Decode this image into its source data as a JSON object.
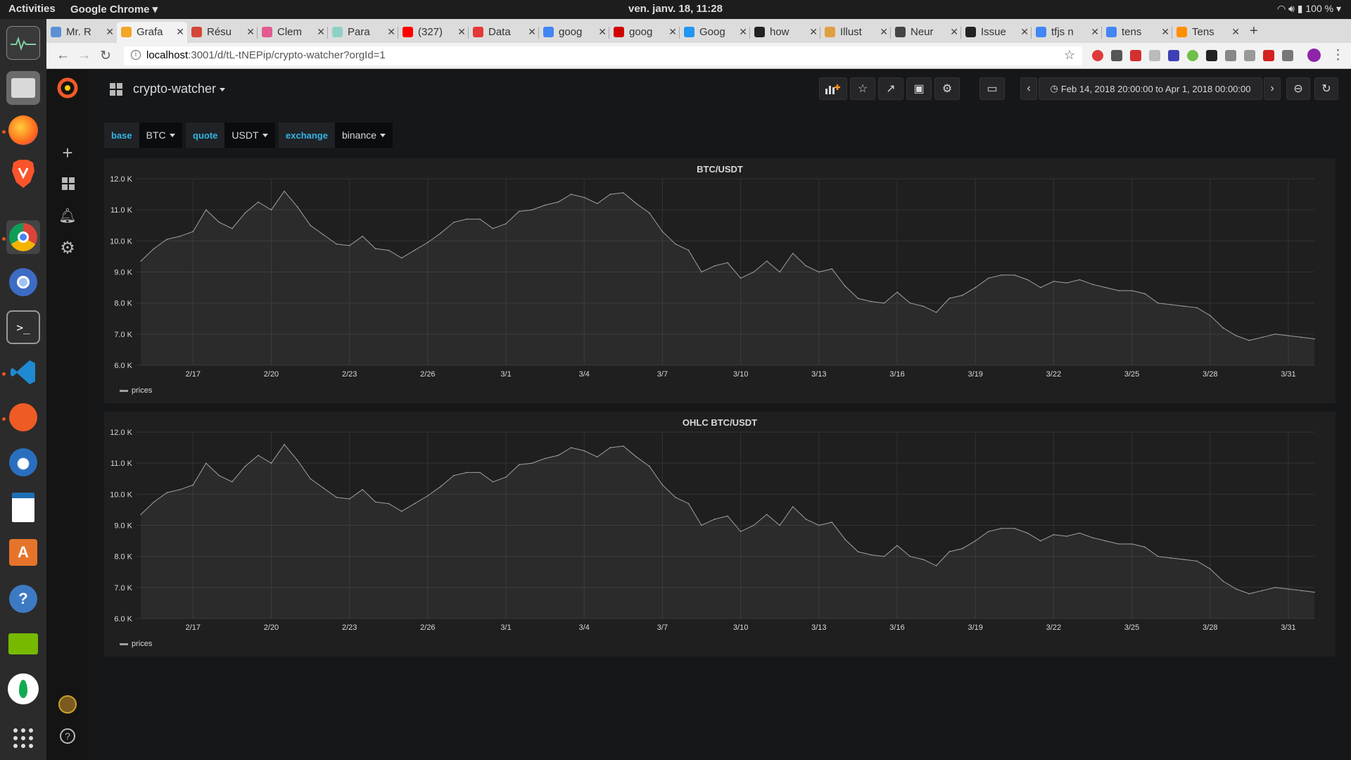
{
  "system_bar": {
    "activities": "Activities",
    "app_name": "Google Chrome ▾",
    "clock": "ven. janv. 18, 11:28",
    "tray": "100 % ▾"
  },
  "browser": {
    "tabs": [
      {
        "label": "Mr. R",
        "icon_color": "#5b8fd6"
      },
      {
        "label": "Grafa",
        "icon_color": "#f4a629",
        "active": true
      },
      {
        "label": "Résu",
        "icon_color": "#d44638"
      },
      {
        "label": "Clem",
        "icon_color": "#e35b8f"
      },
      {
        "label": "Para",
        "icon_color": "#8fd0c6"
      },
      {
        "label": "(327)",
        "icon_color": "#ff0000"
      },
      {
        "label": "Data",
        "icon_color": "#e53935"
      },
      {
        "label": "goog",
        "icon_color": "#4285f4"
      },
      {
        "label": "goog",
        "icon_color": "#d00000"
      },
      {
        "label": "Goog",
        "icon_color": "#2196f3"
      },
      {
        "label": "how",
        "icon_color": "#222222"
      },
      {
        "label": "Illust",
        "icon_color": "#e0a040"
      },
      {
        "label": "Neur",
        "icon_color": "#444444"
      },
      {
        "label": "Issue",
        "icon_color": "#222222"
      },
      {
        "label": "tfjs n",
        "icon_color": "#4285f4"
      },
      {
        "label": "tens",
        "icon_color": "#4285f4"
      },
      {
        "label": "Tens",
        "icon_color": "#ff8f00"
      }
    ],
    "url_host": "localhost",
    "url_path": ":3001/d/tL-tNEPip/crypto-watcher?orgId=1"
  },
  "dashboard": {
    "title": "crypto-watcher",
    "time_range": "Feb 14, 2018 20:00:00 to Apr 1, 2018 00:00:00",
    "variables": [
      {
        "label": "base",
        "value": "BTC"
      },
      {
        "label": "quote",
        "value": "USDT"
      },
      {
        "label": "exchange",
        "value": "binance"
      }
    ]
  },
  "panels": [
    {
      "title": "BTC/USDT",
      "legend": "prices"
    },
    {
      "title": "OHLC BTC/USDT",
      "legend": "prices"
    }
  ],
  "chart_data": [
    {
      "type": "line",
      "title": "BTC/USDT",
      "xlabel": "",
      "ylabel": "",
      "y_tick_labels": [
        "12.0 K",
        "11.0 K",
        "10.0 K",
        "9.0 K",
        "8.0 K",
        "7.0 K",
        "6.0 K"
      ],
      "x_tick_labels": [
        "2/17",
        "2/20",
        "2/23",
        "2/26",
        "3/1",
        "3/4",
        "3/7",
        "3/10",
        "3/13",
        "3/16",
        "3/19",
        "3/22",
        "3/25",
        "3/28",
        "3/31"
      ],
      "ylim": [
        6000,
        12000
      ],
      "xlim": [
        "2018-02-14 20:00",
        "2018-04-01 00:00"
      ],
      "grid": true,
      "series": [
        {
          "name": "prices",
          "color": "#a0a0a0",
          "x": [
            "2018-02-15 00:00",
            "2018-02-15 12:00",
            "2018-02-16 00:00",
            "2018-02-16 12:00",
            "2018-02-17 00:00",
            "2018-02-17 12:00",
            "2018-02-18 00:00",
            "2018-02-18 12:00",
            "2018-02-19 00:00",
            "2018-02-19 12:00",
            "2018-02-20 00:00",
            "2018-02-20 12:00",
            "2018-02-21 00:00",
            "2018-02-21 12:00",
            "2018-02-22 00:00",
            "2018-02-22 12:00",
            "2018-02-23 00:00",
            "2018-02-23 12:00",
            "2018-02-24 00:00",
            "2018-02-24 12:00",
            "2018-02-25 00:00",
            "2018-02-25 12:00",
            "2018-02-26 00:00",
            "2018-02-26 12:00",
            "2018-02-27 00:00",
            "2018-02-27 12:00",
            "2018-02-28 00:00",
            "2018-02-28 12:00",
            "2018-03-01 00:00",
            "2018-03-01 12:00",
            "2018-03-02 00:00",
            "2018-03-02 12:00",
            "2018-03-03 00:00",
            "2018-03-03 12:00",
            "2018-03-04 00:00",
            "2018-03-04 12:00",
            "2018-03-05 00:00",
            "2018-03-05 12:00",
            "2018-03-06 00:00",
            "2018-03-06 12:00",
            "2018-03-07 00:00",
            "2018-03-07 12:00",
            "2018-03-08 00:00",
            "2018-03-08 12:00",
            "2018-03-09 00:00",
            "2018-03-09 12:00",
            "2018-03-10 00:00",
            "2018-03-10 12:00",
            "2018-03-11 00:00",
            "2018-03-11 12:00",
            "2018-03-12 00:00",
            "2018-03-12 12:00",
            "2018-03-13 00:00",
            "2018-03-13 12:00",
            "2018-03-14 00:00",
            "2018-03-14 12:00",
            "2018-03-15 00:00",
            "2018-03-15 12:00",
            "2018-03-16 00:00",
            "2018-03-16 12:00",
            "2018-03-17 00:00",
            "2018-03-17 12:00",
            "2018-03-18 00:00",
            "2018-03-18 12:00",
            "2018-03-19 00:00",
            "2018-03-19 12:00",
            "2018-03-20 00:00",
            "2018-03-20 12:00",
            "2018-03-21 00:00",
            "2018-03-21 12:00",
            "2018-03-22 00:00",
            "2018-03-22 12:00",
            "2018-03-23 00:00",
            "2018-03-23 12:00",
            "2018-03-24 00:00",
            "2018-03-24 12:00",
            "2018-03-25 00:00",
            "2018-03-25 12:00",
            "2018-03-26 00:00",
            "2018-03-26 12:00",
            "2018-03-27 00:00",
            "2018-03-27 12:00",
            "2018-03-28 00:00",
            "2018-03-28 12:00",
            "2018-03-29 00:00",
            "2018-03-29 12:00",
            "2018-03-30 00:00",
            "2018-03-30 12:00",
            "2018-03-31 00:00",
            "2018-03-31 12:00",
            "2018-04-01 00:00"
          ],
          "y": [
            9350,
            9750,
            10050,
            10150,
            10300,
            11000,
            10600,
            10400,
            10900,
            11250,
            11000,
            11600,
            11100,
            10500,
            10200,
            9900,
            9850,
            10150,
            9750,
            9700,
            9450,
            9700,
            9950,
            10250,
            10600,
            10700,
            10700,
            10400,
            10550,
            10950,
            11000,
            11150,
            11250,
            11500,
            11400,
            11200,
            11500,
            11550,
            11200,
            10900,
            10300,
            9900,
            9700,
            9000,
            9200,
            9300,
            8800,
            9000,
            9350,
            9000,
            9600,
            9200,
            9000,
            9100,
            8550,
            8150,
            8050,
            8000,
            8350,
            8000,
            7900,
            7700,
            8150,
            8250,
            8500,
            8800,
            8900,
            8900,
            8750,
            8500,
            8700,
            8650,
            8750,
            8600,
            8500,
            8400,
            8400,
            8300,
            8000,
            7950,
            7900,
            7850,
            7600,
            7200,
            6950,
            6800,
            6900,
            7000,
            6950,
            6900,
            6850
          ]
        }
      ]
    },
    {
      "type": "line",
      "title": "OHLC BTC/USDT",
      "xlabel": "",
      "ylabel": "",
      "y_tick_labels": [
        "12.0 K",
        "11.0 K",
        "10.0 K",
        "9.0 K",
        "8.0 K",
        "7.0 K",
        "6.0 K"
      ],
      "x_tick_labels": [
        "2/17",
        "2/20",
        "2/23",
        "2/26",
        "3/1",
        "3/4",
        "3/7",
        "3/10",
        "3/13",
        "3/16",
        "3/19",
        "3/22",
        "3/25",
        "3/28",
        "3/31"
      ],
      "ylim": [
        6000,
        12000
      ],
      "xlim": [
        "2018-02-14 20:00",
        "2018-04-01 00:00"
      ],
      "grid": true,
      "series": [
        {
          "name": "prices",
          "color": "#a0a0a0",
          "x": [
            "2018-02-15 00:00",
            "2018-02-15 12:00",
            "2018-02-16 00:00",
            "2018-02-16 12:00",
            "2018-02-17 00:00",
            "2018-02-17 12:00",
            "2018-02-18 00:00",
            "2018-02-18 12:00",
            "2018-02-19 00:00",
            "2018-02-19 12:00",
            "2018-02-20 00:00",
            "2018-02-20 12:00",
            "2018-02-21 00:00",
            "2018-02-21 12:00",
            "2018-02-22 00:00",
            "2018-02-22 12:00",
            "2018-02-23 00:00",
            "2018-02-23 12:00",
            "2018-02-24 00:00",
            "2018-02-24 12:00",
            "2018-02-25 00:00",
            "2018-02-25 12:00",
            "2018-02-26 00:00",
            "2018-02-26 12:00",
            "2018-02-27 00:00",
            "2018-02-27 12:00",
            "2018-02-28 00:00",
            "2018-02-28 12:00",
            "2018-03-01 00:00",
            "2018-03-01 12:00",
            "2018-03-02 00:00",
            "2018-03-02 12:00",
            "2018-03-03 00:00",
            "2018-03-03 12:00",
            "2018-03-04 00:00",
            "2018-03-04 12:00",
            "2018-03-05 00:00",
            "2018-03-05 12:00",
            "2018-03-06 00:00",
            "2018-03-06 12:00",
            "2018-03-07 00:00",
            "2018-03-07 12:00",
            "2018-03-08 00:00",
            "2018-03-08 12:00",
            "2018-03-09 00:00",
            "2018-03-09 12:00",
            "2018-03-10 00:00",
            "2018-03-10 12:00",
            "2018-03-11 00:00",
            "2018-03-11 12:00",
            "2018-03-12 00:00",
            "2018-03-12 12:00",
            "2018-03-13 00:00",
            "2018-03-13 12:00",
            "2018-03-14 00:00",
            "2018-03-14 12:00",
            "2018-03-15 00:00",
            "2018-03-15 12:00",
            "2018-03-16 00:00",
            "2018-03-16 12:00",
            "2018-03-17 00:00",
            "2018-03-17 12:00",
            "2018-03-18 00:00",
            "2018-03-18 12:00",
            "2018-03-19 00:00",
            "2018-03-19 12:00",
            "2018-03-20 00:00",
            "2018-03-20 12:00",
            "2018-03-21 00:00",
            "2018-03-21 12:00",
            "2018-03-22 00:00",
            "2018-03-22 12:00",
            "2018-03-23 00:00",
            "2018-03-23 12:00",
            "2018-03-24 00:00",
            "2018-03-24 12:00",
            "2018-03-25 00:00",
            "2018-03-25 12:00",
            "2018-03-26 00:00",
            "2018-03-26 12:00",
            "2018-03-27 00:00",
            "2018-03-27 12:00",
            "2018-03-28 00:00",
            "2018-03-28 12:00",
            "2018-03-29 00:00",
            "2018-03-29 12:00",
            "2018-03-30 00:00",
            "2018-03-30 12:00",
            "2018-03-31 00:00",
            "2018-03-31 12:00",
            "2018-04-01 00:00"
          ],
          "y": [
            9350,
            9750,
            10050,
            10150,
            10300,
            11000,
            10600,
            10400,
            10900,
            11250,
            11000,
            11600,
            11100,
            10500,
            10200,
            9900,
            9850,
            10150,
            9750,
            9700,
            9450,
            9700,
            9950,
            10250,
            10600,
            10700,
            10700,
            10400,
            10550,
            10950,
            11000,
            11150,
            11250,
            11500,
            11400,
            11200,
            11500,
            11550,
            11200,
            10900,
            10300,
            9900,
            9700,
            9000,
            9200,
            9300,
            8800,
            9000,
            9350,
            9000,
            9600,
            9200,
            9000,
            9100,
            8550,
            8150,
            8050,
            8000,
            8350,
            8000,
            7900,
            7700,
            8150,
            8250,
            8500,
            8800,
            8900,
            8900,
            8750,
            8500,
            8700,
            8650,
            8750,
            8600,
            8500,
            8400,
            8400,
            8300,
            8000,
            7950,
            7900,
            7850,
            7600,
            7200,
            6950,
            6800,
            6900,
            7000,
            6950,
            6900,
            6850
          ]
        }
      ]
    }
  ]
}
